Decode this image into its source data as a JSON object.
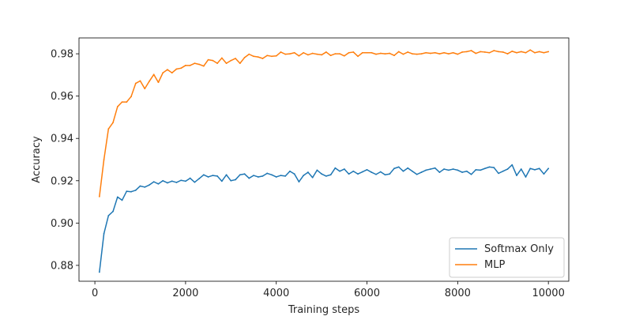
{
  "chart_data": {
    "type": "line",
    "title": "",
    "xlabel": "Training steps",
    "ylabel": "Accuracy",
    "xlim": [
      -350,
      10450
    ],
    "ylim": [
      0.8725,
      0.9875
    ],
    "x_ticks": [
      0,
      2000,
      4000,
      6000,
      8000,
      10000
    ],
    "y_ticks": [
      0.88,
      0.9,
      0.92,
      0.94,
      0.96,
      0.98
    ],
    "x_tick_labels": [
      "0",
      "2000",
      "4000",
      "6000",
      "8000",
      "10000"
    ],
    "y_tick_labels": [
      "0.88",
      "0.90",
      "0.92",
      "0.94",
      "0.96",
      "0.98"
    ],
    "grid": false,
    "legend": "bottom-right",
    "series": [
      {
        "name": "Softmax Only",
        "color": "#1f77b4",
        "x": [
          100,
          200,
          300,
          400,
          500,
          600,
          700,
          800,
          900,
          1000,
          1100,
          1200,
          1300,
          1400,
          1500,
          1600,
          1700,
          1800,
          1900,
          2000,
          2100,
          2200,
          2300,
          2400,
          2500,
          2600,
          2700,
          2800,
          2900,
          3000,
          3100,
          3200,
          3300,
          3400,
          3500,
          3600,
          3700,
          3800,
          3900,
          4000,
          4100,
          4200,
          4300,
          4400,
          4500,
          4600,
          4700,
          4800,
          4900,
          5000,
          5100,
          5200,
          5300,
          5400,
          5500,
          5600,
          5700,
          5800,
          5900,
          6000,
          6100,
          6200,
          6300,
          6400,
          6500,
          6600,
          6700,
          6800,
          6900,
          7000,
          7100,
          7200,
          7300,
          7400,
          7500,
          7600,
          7700,
          7800,
          7900,
          8000,
          8100,
          8200,
          8300,
          8400,
          8500,
          8600,
          8700,
          8800,
          8900,
          9000,
          9100,
          9200,
          9300,
          9400,
          9500,
          9600,
          9700,
          9800,
          9900,
          10000
        ],
        "values": [
          0.8768,
          0.895,
          0.9035,
          0.9055,
          0.9123,
          0.9108,
          0.915,
          0.9148,
          0.9155,
          0.9175,
          0.917,
          0.918,
          0.9195,
          0.9185,
          0.92,
          0.919,
          0.9198,
          0.9192,
          0.9202,
          0.9198,
          0.9212,
          0.9193,
          0.921,
          0.9228,
          0.9218,
          0.9225,
          0.9222,
          0.9198,
          0.9228,
          0.92,
          0.9205,
          0.9228,
          0.9232,
          0.9212,
          0.9225,
          0.9218,
          0.9222,
          0.9235,
          0.9228,
          0.9218,
          0.9225,
          0.9222,
          0.9245,
          0.9232,
          0.9195,
          0.9225,
          0.924,
          0.9215,
          0.925,
          0.9232,
          0.9222,
          0.9228,
          0.926,
          0.9245,
          0.9255,
          0.9232,
          0.9245,
          0.9232,
          0.9242,
          0.9252,
          0.924,
          0.923,
          0.9242,
          0.9228,
          0.9232,
          0.9258,
          0.9265,
          0.9245,
          0.926,
          0.9245,
          0.923,
          0.924,
          0.925,
          0.9255,
          0.926,
          0.924,
          0.9255,
          0.925,
          0.9255,
          0.925,
          0.924,
          0.9245,
          0.923,
          0.9252,
          0.925,
          0.9258,
          0.9265,
          0.9262,
          0.9235,
          0.9245,
          0.9255,
          0.9275,
          0.9225,
          0.9255,
          0.9218,
          0.9258,
          0.9252,
          0.9258,
          0.9232,
          0.9258
        ]
      },
      {
        "name": "MLP",
        "color": "#ff7f0e",
        "x": [
          100,
          200,
          300,
          400,
          500,
          600,
          700,
          800,
          900,
          1000,
          1100,
          1200,
          1300,
          1400,
          1500,
          1600,
          1700,
          1800,
          1900,
          2000,
          2100,
          2200,
          2300,
          2400,
          2500,
          2600,
          2700,
          2800,
          2900,
          3000,
          3100,
          3200,
          3300,
          3400,
          3500,
          3600,
          3700,
          3800,
          3900,
          4000,
          4100,
          4200,
          4300,
          4400,
          4500,
          4600,
          4700,
          4800,
          4900,
          5000,
          5100,
          5200,
          5300,
          5400,
          5500,
          5600,
          5700,
          5800,
          5900,
          6000,
          6100,
          6200,
          6300,
          6400,
          6500,
          6600,
          6700,
          6800,
          6900,
          7000,
          7100,
          7200,
          7300,
          7400,
          7500,
          7600,
          7700,
          7800,
          7900,
          8000,
          8100,
          8200,
          8300,
          8400,
          8500,
          8600,
          8700,
          8800,
          8900,
          9000,
          9100,
          9200,
          9300,
          9400,
          9500,
          9600,
          9700,
          9800,
          9900,
          10000
        ],
        "values": [
          0.9125,
          0.93,
          0.9445,
          0.9475,
          0.955,
          0.9572,
          0.9572,
          0.9598,
          0.966,
          0.9672,
          0.9635,
          0.967,
          0.9702,
          0.9665,
          0.971,
          0.9725,
          0.971,
          0.9728,
          0.9732,
          0.9745,
          0.9745,
          0.9755,
          0.975,
          0.9742,
          0.9772,
          0.9768,
          0.9755,
          0.978,
          0.9755,
          0.9768,
          0.9778,
          0.9755,
          0.9782,
          0.9798,
          0.9788,
          0.9785,
          0.9778,
          0.9792,
          0.9788,
          0.979,
          0.9808,
          0.9798,
          0.98,
          0.9805,
          0.979,
          0.9805,
          0.9795,
          0.9802,
          0.9798,
          0.9795,
          0.9808,
          0.9792,
          0.98,
          0.98,
          0.979,
          0.9805,
          0.9808,
          0.9788,
          0.9805,
          0.9805,
          0.9805,
          0.9798,
          0.9802,
          0.98,
          0.9802,
          0.9792,
          0.981,
          0.9798,
          0.9808,
          0.98,
          0.9798,
          0.98,
          0.9805,
          0.9802,
          0.9805,
          0.98,
          0.9805,
          0.98,
          0.9805,
          0.9798,
          0.9808,
          0.981,
          0.9815,
          0.9802,
          0.981,
          0.9808,
          0.9805,
          0.9815,
          0.981,
          0.9808,
          0.98,
          0.9812,
          0.9805,
          0.981,
          0.9805,
          0.9818,
          0.9805,
          0.981,
          0.9805,
          0.981
        ]
      }
    ]
  }
}
